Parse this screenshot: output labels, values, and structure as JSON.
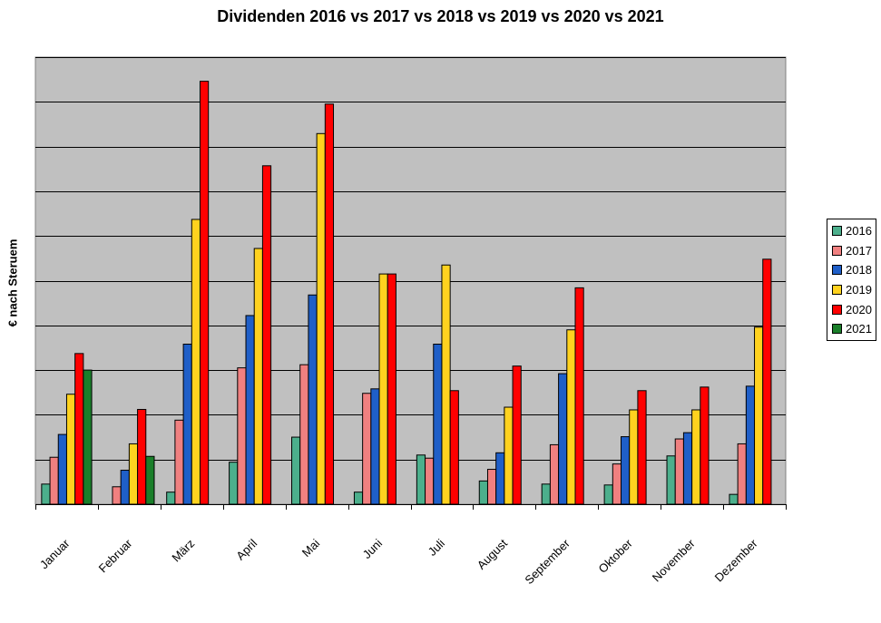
{
  "chart_data": {
    "type": "bar",
    "title": "Dividenden 2016 vs 2017 vs 2018 vs 2019 vs 2020 vs 2021",
    "xlabel": "",
    "ylabel": "€ nach Steruem",
    "ylim": [
      0,
      10
    ],
    "grid": true,
    "legend_position": "right",
    "plot_background": "#c0c0c0",
    "categories": [
      "Januar",
      "Februar",
      "März",
      "April",
      "Mai",
      "Juni",
      "Juli",
      "August",
      "September",
      "Oktober",
      "November",
      "Dezember"
    ],
    "series": [
      {
        "name": "2016",
        "color": "#4caf8c",
        "values": [
          0.45,
          0,
          0.27,
          0.94,
          1.5,
          0.27,
          1.1,
          0.52,
          0.45,
          0.43,
          1.08,
          0.22
        ]
      },
      {
        "name": "2017",
        "color": "#f08080",
        "values": [
          1.05,
          0.39,
          1.88,
          3.05,
          3.12,
          2.48,
          1.03,
          0.78,
          1.33,
          0.9,
          1.46,
          1.35
        ]
      },
      {
        "name": "2018",
        "color": "#1f5fc8",
        "values": [
          1.56,
          0.76,
          3.58,
          4.22,
          4.68,
          2.58,
          3.58,
          1.15,
          2.92,
          1.51,
          1.6,
          2.64
        ]
      },
      {
        "name": "2019",
        "color": "#ffd21f",
        "values": [
          2.46,
          1.35,
          6.37,
          5.72,
          8.29,
          5.15,
          5.35,
          2.17,
          3.9,
          2.11,
          2.11,
          3.96
        ]
      },
      {
        "name": "2020",
        "color": "#ff0000",
        "values": [
          3.37,
          2.12,
          9.46,
          7.57,
          8.95,
          5.15,
          2.54,
          3.09,
          4.84,
          2.54,
          2.62,
          5.48
        ]
      },
      {
        "name": "2021",
        "color": "#1a7f2a",
        "values": [
          3.0,
          1.07,
          0,
          0,
          0,
          0,
          0,
          0,
          0,
          0,
          0,
          0
        ]
      }
    ]
  }
}
